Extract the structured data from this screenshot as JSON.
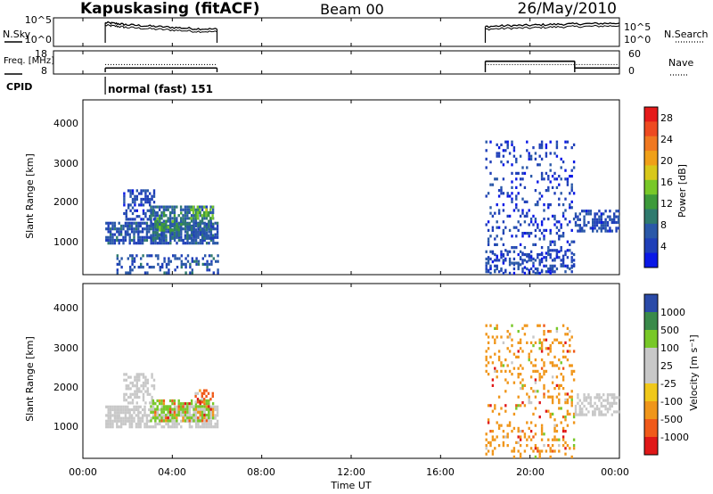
{
  "header": {
    "station": "Kapuskasing (fitACF)",
    "beam": "Beam 00",
    "date": "26/May/2010"
  },
  "colors": {
    "frame": "#000000",
    "background": "#ffffff"
  },
  "chart_data": [
    {
      "type": "line",
      "panel": "sky-noise",
      "ylabel": "N.Sky",
      "right_label": "N.Search",
      "y_ticks_left": [
        "10^5",
        "10^0"
      ],
      "y_ticks_right": [
        "10^5",
        "10^0"
      ],
      "x": [
        1.0,
        1.5,
        2.0,
        3.0,
        4.0,
        5.0,
        6.0,
        18.0,
        19.0,
        20.0,
        21.0,
        22.0,
        23.0,
        24.0
      ],
      "series": [
        {
          "values": [
            4.7,
            4.5,
            4.2,
            3.9,
            3.6,
            3.3,
            3.2,
            3.8,
            4.0,
            4.1,
            4.3,
            4.4,
            4.5,
            4.6
          ]
        }
      ],
      "gaps": [
        [
          6.0,
          18.0
        ]
      ]
    },
    {
      "type": "line",
      "panel": "frequency-nave",
      "ylabel": "Freq. [MHz]",
      "right_label": "Nave",
      "y_ticks_left": [
        "18",
        "8"
      ],
      "y_ticks_right": [
        "60",
        "0"
      ],
      "series": [
        {
          "style": "solid",
          "segments": [
            {
              "x": [
                1.0,
                6.0
              ],
              "y": 10.5
            },
            {
              "x": [
                18.0,
                22.0
              ],
              "y": 14.5
            },
            {
              "x": [
                22.0,
                24.0
              ],
              "y": 10.5
            }
          ]
        },
        {
          "style": "dotted",
          "segments": [
            {
              "x": [
                1.0,
                6.0
              ],
              "y": 12.5
            },
            {
              "x": [
                18.0,
                24.0
              ],
              "y": 12.5
            }
          ]
        }
      ]
    },
    {
      "type": "table",
      "panel": "cpid",
      "ylabel": "CPID",
      "annotation": "normal (fast) 151",
      "start_hour": 1.0
    },
    {
      "type": "heatmap",
      "panel": "power",
      "ylabel": "Slant Range [km]",
      "ylim": [
        200,
        4500
      ],
      "y_ticks": [
        "1000",
        "2000",
        "3000",
        "4000"
      ],
      "xlim": [
        0,
        24
      ],
      "colorbar": {
        "label": "Power [dB]",
        "ticks": [
          "4",
          "8",
          "12",
          "16",
          "20",
          "24",
          "28"
        ],
        "range": [
          0,
          30
        ]
      },
      "patches": [
        {
          "x": [
            1.0,
            6.0
          ],
          "y": [
            1000,
            1500
          ],
          "value": 6,
          "density": 0.75
        },
        {
          "x": [
            1.8,
            3.2
          ],
          "y": [
            1550,
            2300
          ],
          "value": 5,
          "density": 0.55
        },
        {
          "x": [
            3.0,
            5.8
          ],
          "y": [
            1100,
            1900
          ],
          "value": 8,
          "density": 0.7
        },
        {
          "x": [
            3.2,
            4.4
          ],
          "y": [
            1300,
            1750
          ],
          "value": 13,
          "density": 0.35
        },
        {
          "x": [
            4.8,
            5.8
          ],
          "y": [
            1600,
            1900
          ],
          "value": 14,
          "density": 0.4
        },
        {
          "x": [
            1.5,
            6.0
          ],
          "y": [
            250,
            700
          ],
          "value": 6,
          "density": 0.35
        },
        {
          "x": [
            18.0,
            22.0
          ],
          "y": [
            250,
            3500
          ],
          "value": 4,
          "density": 0.18
        },
        {
          "x": [
            18.0,
            22.0
          ],
          "y": [
            250,
            800
          ],
          "value": 5,
          "density": 0.35
        },
        {
          "x": [
            22.0,
            24.0
          ],
          "y": [
            1300,
            1800
          ],
          "value": 5,
          "density": 0.6
        }
      ]
    },
    {
      "type": "heatmap",
      "panel": "velocity",
      "ylabel": "Slant Range [km]",
      "ylim": [
        200,
        4500
      ],
      "y_ticks": [
        "1000",
        "2000",
        "3000",
        "4000"
      ],
      "xlim": [
        0,
        24
      ],
      "x_ticks": [
        "00:00",
        "04:00",
        "08:00",
        "12:00",
        "16:00",
        "20:00",
        "00:00"
      ],
      "xlabel": "Time UT",
      "colorbar": {
        "label": "Velocity [m s⁻¹]",
        "ticks": [
          "1000",
          "500",
          "100",
          "25",
          "-25",
          "-100",
          "-500",
          "-1000"
        ]
      },
      "patches": [
        {
          "x": [
            1.0,
            6.0
          ],
          "y": [
            1000,
            1500
          ],
          "value": 0,
          "density": 0.75
        },
        {
          "x": [
            1.8,
            3.2
          ],
          "y": [
            1550,
            2300
          ],
          "value": 0,
          "density": 0.5
        },
        {
          "x": [
            3.0,
            5.8
          ],
          "y": [
            1100,
            1650
          ],
          "value": 80,
          "density": 0.6
        },
        {
          "x": [
            5.0,
            5.8
          ],
          "y": [
            1550,
            1900
          ],
          "value": -300,
          "density": 0.5
        },
        {
          "x": [
            18.0,
            22.0
          ],
          "y": [
            250,
            3500
          ],
          "value": -150,
          "density": 0.2
        },
        {
          "x": [
            22.0,
            24.0
          ],
          "y": [
            1300,
            1800
          ],
          "value": 0,
          "density": 0.55
        }
      ]
    }
  ]
}
